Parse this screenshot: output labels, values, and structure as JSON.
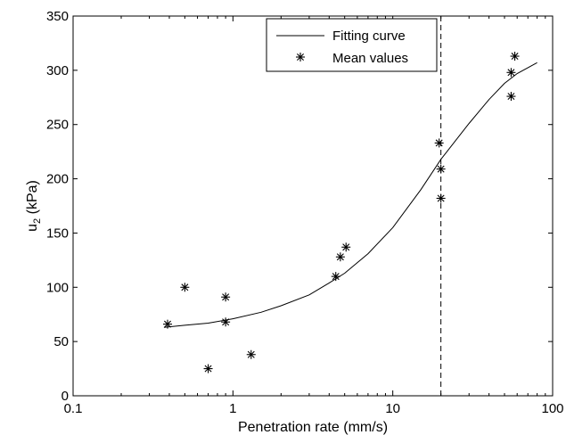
{
  "chart_data": {
    "type": "scatter",
    "title": "",
    "xlabel": "Penetration rate (mm/s)",
    "ylabel_main": "u",
    "ylabel_sub": "2",
    "ylabel_unit": " (kPa)",
    "xscale": "log",
    "xlim": [
      0.1,
      100
    ],
    "ylim": [
      0,
      350
    ],
    "xticks": [
      0.1,
      1,
      10,
      100
    ],
    "xtick_labels": [
      "0.1",
      "1",
      "10",
      "100"
    ],
    "yticks": [
      0,
      50,
      100,
      150,
      200,
      250,
      300,
      350
    ],
    "ytick_labels": [
      "0",
      "50",
      "100",
      "150",
      "200",
      "250",
      "300",
      "350"
    ],
    "grid": false,
    "legend": {
      "position": "top-right",
      "entries": [
        "Fitting curve",
        "Mean values"
      ]
    },
    "reference_line": {
      "x": 20,
      "style": "dashed"
    },
    "series": [
      {
        "name": "Mean values",
        "kind": "scatter",
        "marker": "asterisk",
        "points": [
          [
            0.39,
            66
          ],
          [
            0.5,
            100
          ],
          [
            0.7,
            25
          ],
          [
            0.9,
            91
          ],
          [
            0.9,
            68
          ],
          [
            1.3,
            38
          ],
          [
            4.4,
            110
          ],
          [
            4.7,
            128
          ],
          [
            5.1,
            137
          ],
          [
            19.5,
            233
          ],
          [
            20.0,
            209
          ],
          [
            20.0,
            182
          ],
          [
            55,
            298
          ],
          [
            55,
            276
          ],
          [
            58,
            313
          ]
        ]
      },
      {
        "name": "Fitting curve",
        "kind": "line",
        "points": [
          [
            0.37,
            63
          ],
          [
            0.5,
            65
          ],
          [
            0.7,
            67
          ],
          [
            1.0,
            71
          ],
          [
            1.5,
            77
          ],
          [
            2.0,
            83
          ],
          [
            3.0,
            93
          ],
          [
            4.0,
            104
          ],
          [
            5.0,
            113
          ],
          [
            7.0,
            131
          ],
          [
            10.0,
            155
          ],
          [
            15.0,
            190
          ],
          [
            20.0,
            218
          ],
          [
            30.0,
            251
          ],
          [
            40.0,
            273
          ],
          [
            50.0,
            288
          ],
          [
            60.0,
            297
          ],
          [
            80.0,
            307
          ]
        ]
      }
    ]
  }
}
